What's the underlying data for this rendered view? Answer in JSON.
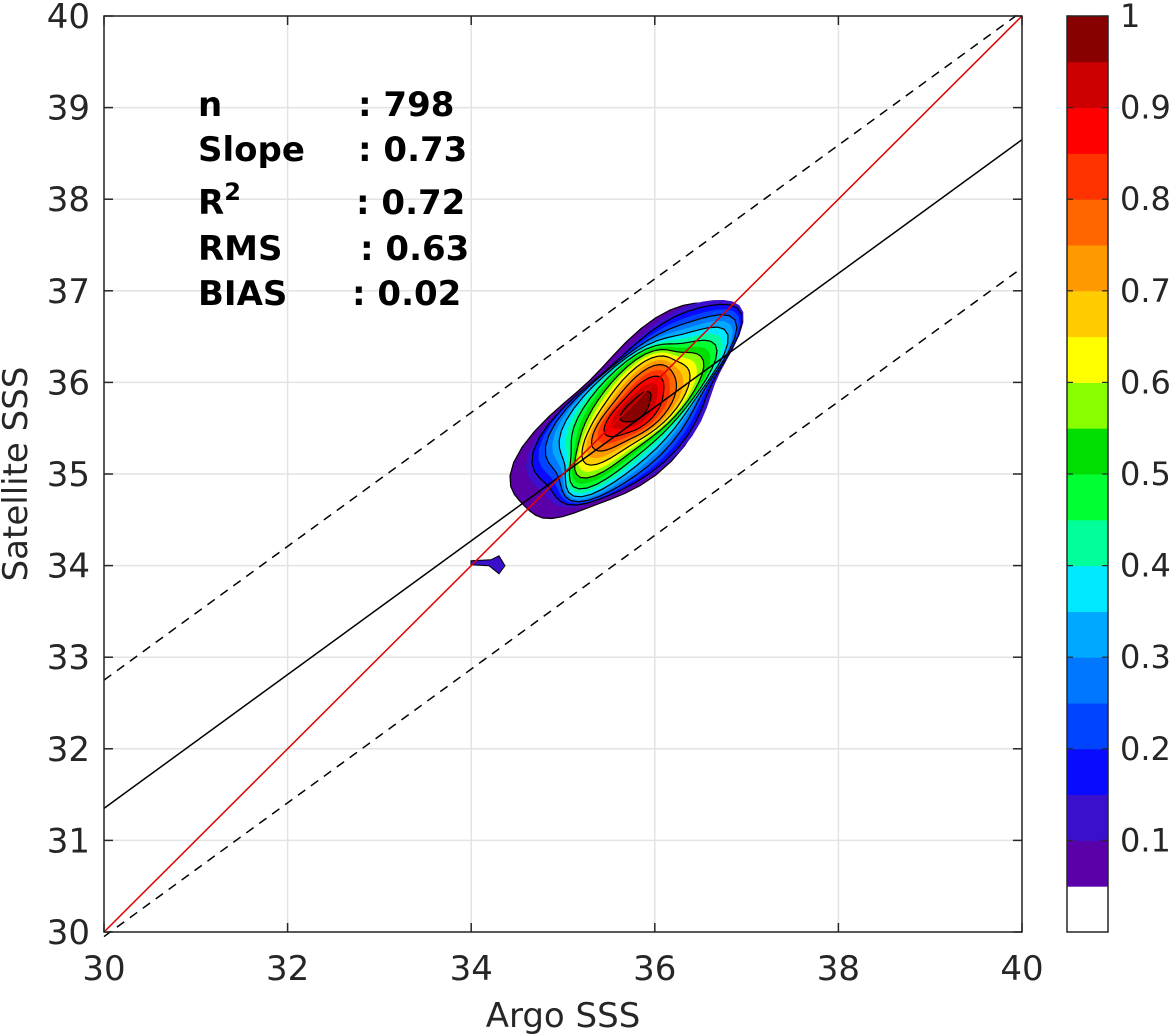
{
  "chart_data": {
    "type": "contour-scatter-density",
    "xlabel": "Argo SSS",
    "ylabel": "Satellite SSS",
    "xlim": [
      30,
      40
    ],
    "ylim": [
      30,
      40
    ],
    "xticks": [
      "30",
      "32",
      "34",
      "36",
      "38",
      "40"
    ],
    "yticks": [
      "30",
      "31",
      "32",
      "33",
      "34",
      "35",
      "36",
      "37",
      "38",
      "39",
      "40"
    ],
    "grid": true,
    "stats": [
      {
        "label": "n",
        "value": ": 798"
      },
      {
        "label": "Slope",
        "value": ": 0.73"
      },
      {
        "label": "R",
        "sup": "2",
        "value": ": 0.72"
      },
      {
        "label": "RMS",
        "value": ": 0.63"
      },
      {
        "label": "BIAS",
        "value": ": 0.02"
      }
    ],
    "lines": {
      "one_to_one": {
        "x": [
          30,
          40
        ],
        "y": [
          30,
          40
        ],
        "color": "#e00000"
      },
      "regression": {
        "x": [
          30,
          40
        ],
        "y": [
          31.35,
          38.65
        ],
        "color": "#000000"
      },
      "upper_bound": {
        "x": [
          30,
          40
        ],
        "y": [
          32.75,
          40.05
        ],
        "color": "#000000",
        "dash": true
      },
      "lower_bound": {
        "x": [
          30,
          40
        ],
        "y": [
          29.95,
          37.25
        ],
        "color": "#000000",
        "dash": true
      }
    },
    "density_peak": {
      "x": 35.8,
      "y": 35.72
    },
    "contour_levels": [
      0.05,
      0.1,
      0.15,
      0.2,
      0.25,
      0.3,
      0.35,
      0.4,
      0.45,
      0.5,
      0.55,
      0.6,
      0.65,
      0.7,
      0.75,
      0.8,
      0.85,
      0.9,
      0.95
    ],
    "colorbar": {
      "ticks": [
        "0.1",
        "0.2",
        "0.3",
        "0.4",
        "0.5",
        "0.6",
        "0.7",
        "0.8",
        "0.9",
        "1"
      ],
      "tick_values": [
        0.1,
        0.2,
        0.3,
        0.4,
        0.5,
        0.6,
        0.7,
        0.8,
        0.9,
        1.0
      ],
      "range": [
        0,
        1
      ],
      "colors": [
        "#ffffff",
        "#5a00a8",
        "#3b10cc",
        "#0a0aff",
        "#0044ff",
        "#0077ff",
        "#00a8ff",
        "#00e8ff",
        "#00ff9a",
        "#00ff33",
        "#00dd00",
        "#88ff00",
        "#ffff00",
        "#ffcc00",
        "#ff9900",
        "#ff6600",
        "#ff3300",
        "#ff0000",
        "#cc0000",
        "#880000"
      ]
    }
  }
}
